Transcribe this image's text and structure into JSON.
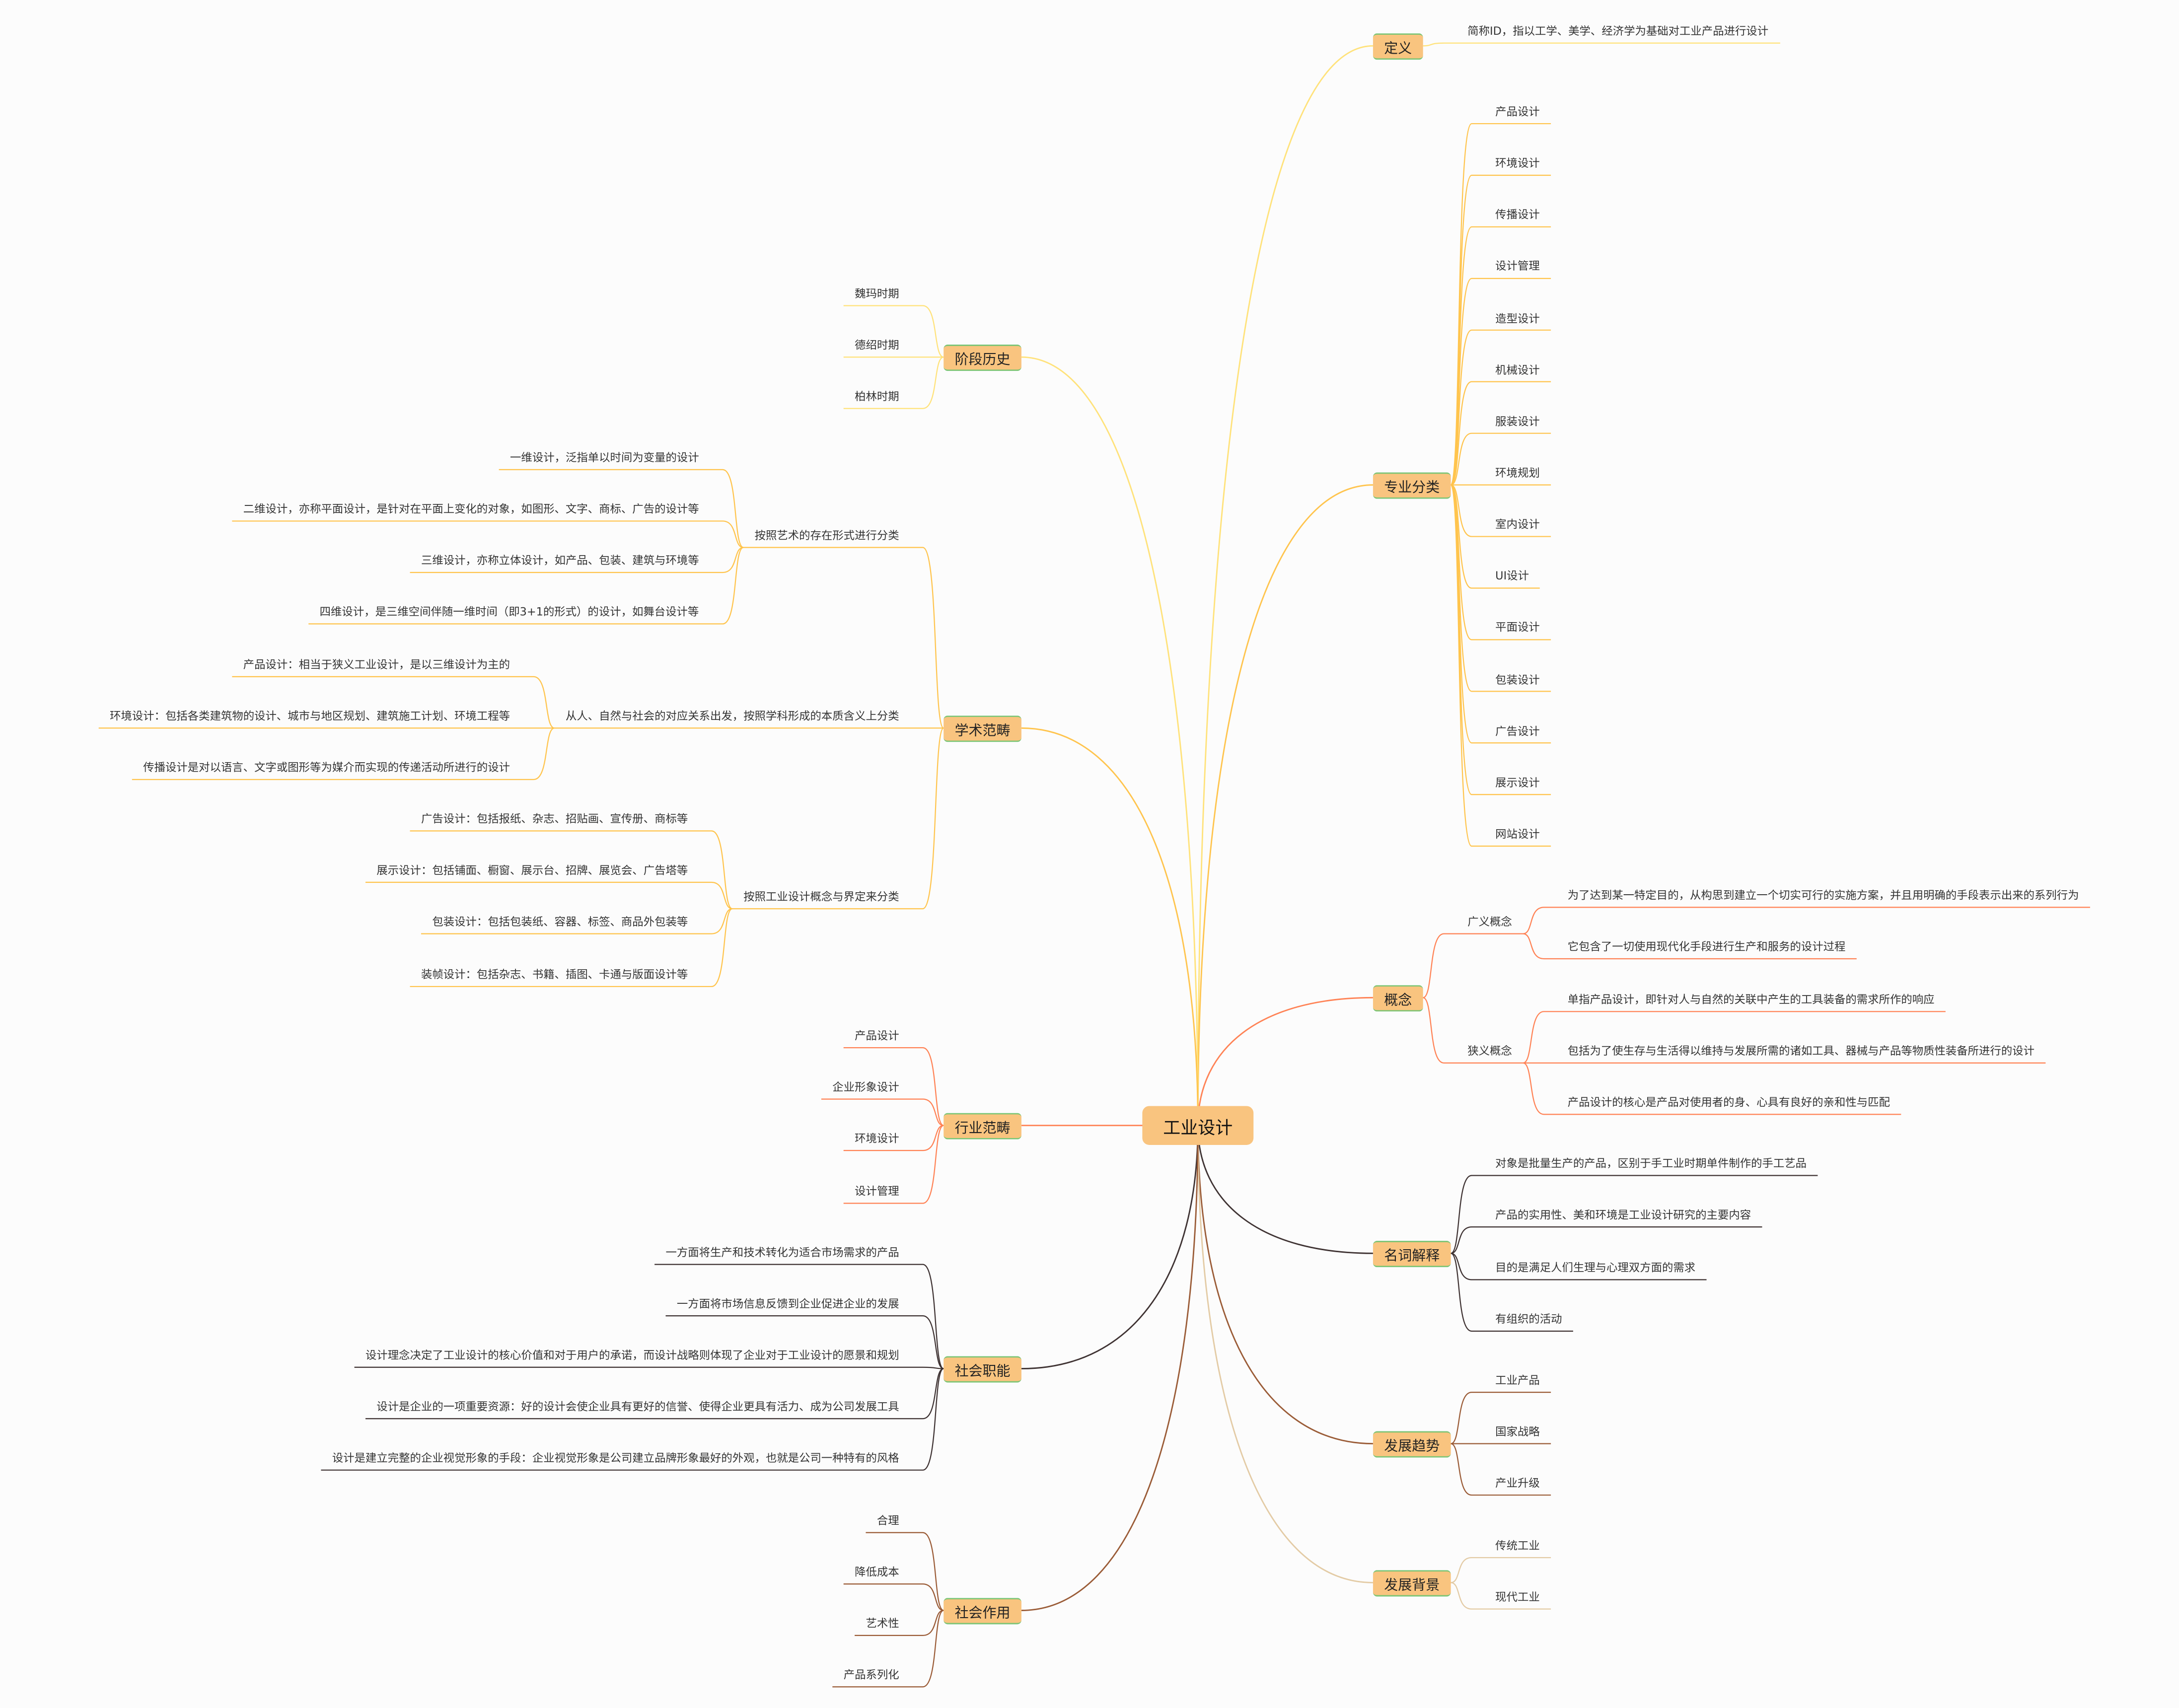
{
  "root": {
    "label": "工业设计"
  },
  "branches": [
    {
      "label": "定义",
      "side": "right",
      "color": "#FFE27A",
      "children": [
        {
          "label": "简称ID，指以工学、美学、经济学为基础对工业产品进行设计"
        }
      ]
    },
    {
      "label": "专业分类",
      "side": "right",
      "color": "#FFC44D",
      "children": [
        {
          "label": "产品设计"
        },
        {
          "label": "环境设计"
        },
        {
          "label": "传播设计"
        },
        {
          "label": "设计管理"
        },
        {
          "label": "造型设计"
        },
        {
          "label": "机械设计"
        },
        {
          "label": "服装设计"
        },
        {
          "label": "环境规划"
        },
        {
          "label": "室内设计"
        },
        {
          "label": "UI设计"
        },
        {
          "label": "平面设计"
        },
        {
          "label": "包装设计"
        },
        {
          "label": "广告设计"
        },
        {
          "label": "展示设计"
        },
        {
          "label": "网站设计"
        }
      ]
    },
    {
      "label": "概念",
      "side": "right",
      "color": "#FF8255",
      "children": [
        {
          "label": "广义概念",
          "children": [
            {
              "label": "为了达到某一特定目的，从构思到建立一个切实可行的实施方案，并且用明确的手段表示出来的系列行为"
            },
            {
              "label": "它包含了一切使用现代化手段进行生产和服务的设计过程"
            }
          ]
        },
        {
          "label": "狭义概念",
          "children": [
            {
              "label": "单指产品设计，即针对人与自然的关联中产生的工具装备的需求所作的响应"
            },
            {
              "label": "包括为了使生存与生活得以维持与发展所需的诸如工具、器械与产品等物质性装备所进行的设计"
            },
            {
              "label": "产品设计的核心是产品对使用者的身、心具有良好的亲和性与匹配"
            }
          ]
        }
      ]
    },
    {
      "label": "名词解释",
      "side": "right",
      "color": "#3E3232",
      "children": [
        {
          "label": "对象是批量生产的产品，区别于手工业时期单件制作的手工艺品"
        },
        {
          "label": "产品的实用性、美和环境是工业设计研究的主要内容"
        },
        {
          "label": "目的是满足人们生理与心理双方面的需求"
        },
        {
          "label": "有组织的活动"
        }
      ]
    },
    {
      "label": "发展趋势",
      "side": "right",
      "color": "#9A5B36",
      "children": [
        {
          "label": "工业产品"
        },
        {
          "label": "国家战略"
        },
        {
          "label": "产业升级"
        }
      ]
    },
    {
      "label": "发展背景",
      "side": "right",
      "color": "#E3CBA5",
      "children": [
        {
          "label": "传统工业"
        },
        {
          "label": "现代工业"
        }
      ]
    },
    {
      "label": "阶段历史",
      "side": "left",
      "color": "#FFE27A",
      "children": [
        {
          "label": "魏玛时期"
        },
        {
          "label": "德绍时期"
        },
        {
          "label": "柏林时期"
        }
      ]
    },
    {
      "label": "学术范畴",
      "side": "left",
      "color": "#FFC44D",
      "children": [
        {
          "label": "按照艺术的存在形式进行分类",
          "children": [
            {
              "label": "一维设计，泛指单以时间为变量的设计"
            },
            {
              "label": "二维设计，亦称平面设计，是针对在平面上变化的对象，如图形、文字、商标、广告的设计等"
            },
            {
              "label": "三维设计，亦称立体设计，如产品、包装、建筑与环境等"
            },
            {
              "label": "四维设计，是三维空间伴随一维时间（即3+1的形式）的设计，如舞台设计等"
            }
          ]
        },
        {
          "label": "从人、自然与社会的对应关系出发，按照学科形成的本质含义上分类",
          "children": [
            {
              "label": "产品设计：相当于狭义工业设计，是以三维设计为主的"
            },
            {
              "label": "环境设计：包括各类建筑物的设计、城市与地区规划、建筑施工计划、环境工程等"
            },
            {
              "label": "传播设计是对以语言、文字或图形等为媒介而实现的传递活动所进行的设计"
            }
          ]
        },
        {
          "label": "按照工业设计概念与界定来分类",
          "children": [
            {
              "label": "广告设计：包括报纸、杂志、招贴画、宣传册、商标等"
            },
            {
              "label": "展示设计：包括铺面、橱窗、展示台、招牌、展览会、广告塔等"
            },
            {
              "label": "包装设计：包括包装纸、容器、标签、商品外包装等"
            },
            {
              "label": "装帧设计：包括杂志、书籍、插图、卡通与版面设计等"
            }
          ]
        }
      ]
    },
    {
      "label": "行业范畴",
      "side": "left",
      "color": "#FF8255",
      "children": [
        {
          "label": "产品设计"
        },
        {
          "label": "企业形象设计"
        },
        {
          "label": "环境设计"
        },
        {
          "label": "设计管理"
        }
      ]
    },
    {
      "label": "社会职能",
      "side": "left",
      "color": "#3E3232",
      "children": [
        {
          "label": "一方面将生产和技术转化为适合市场需求的产品"
        },
        {
          "label": "一方面将市场信息反馈到企业促进企业的发展"
        },
        {
          "label": "设计理念决定了工业设计的核心价值和对于用户的承诺，而设计战略则体现了企业对于工业设计的愿景和规划"
        },
        {
          "label": "设计是企业的一项重要资源：好的设计会使企业具有更好的信誉、使得企业更具有活力、成为公司发展工具"
        },
        {
          "label": "设计是建立完整的企业视觉形象的手段：企业视觉形象是公司建立品牌形象最好的外观，也就是公司一种特有的风格"
        }
      ]
    },
    {
      "label": "社会作用",
      "side": "left",
      "color": "#9A5B36",
      "children": [
        {
          "label": "合理"
        },
        {
          "label": "降低成本"
        },
        {
          "label": "艺术性"
        },
        {
          "label": "产品系列化"
        }
      ]
    }
  ]
}
